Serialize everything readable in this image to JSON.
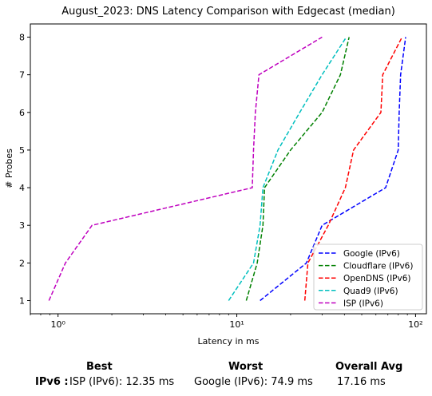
{
  "chart_data": {
    "type": "line",
    "title": "August_2023: DNS Latency Comparison with Edgecast (median)",
    "xlabel": "Latency in ms",
    "ylabel": "# Probes",
    "xscale": "log",
    "xlim": [
      0.7,
      115
    ],
    "ylim": [
      0.65,
      8.35
    ],
    "x_ticks": [
      1,
      10,
      100
    ],
    "x_tick_labels": [
      "10⁰",
      "10¹",
      "10²"
    ],
    "y_ticks": [
      1,
      2,
      3,
      4,
      5,
      6,
      7,
      8
    ],
    "grid": false,
    "legend_position": "lower right",
    "y": [
      1,
      2,
      3,
      4,
      5,
      6,
      7,
      8
    ],
    "series": [
      {
        "name": "Google (IPv6)",
        "color": "#0000ff",
        "x": [
          13.5,
          24.5,
          30.0,
          68.0,
          80.0,
          81.0,
          82.5,
          88.0
        ]
      },
      {
        "name": "Cloudflare (IPv6)",
        "color": "#008000",
        "x": [
          11.3,
          13.0,
          14.0,
          14.3,
          20.0,
          30.0,
          38.0,
          42.5
        ]
      },
      {
        "name": "OpenDNS (IPv6)",
        "color": "#ff0000",
        "x": [
          24.0,
          25.0,
          32.5,
          40.5,
          45.0,
          64.0,
          65.5,
          84.0
        ]
      },
      {
        "name": "Quad9 (IPv6)",
        "color": "#00bfbf",
        "x": [
          9.0,
          12.4,
          13.5,
          14.0,
          17.0,
          22.5,
          30.0,
          41.0
        ]
      },
      {
        "name": "ISP (IPv6)",
        "color": "#bf00bf",
        "x": [
          0.89,
          1.1,
          1.55,
          12.2,
          12.4,
          12.7,
          13.3,
          30.0
        ]
      }
    ]
  },
  "summary": {
    "best_header": "Best",
    "worst_header": "Worst",
    "avg_header": "Overall Avg",
    "row_label": "IPv6 :",
    "best_value": "ISP (IPv6): 12.35 ms",
    "worst_value": "Google (IPv6): 74.9 ms",
    "avg_value": "17.16 ms"
  }
}
